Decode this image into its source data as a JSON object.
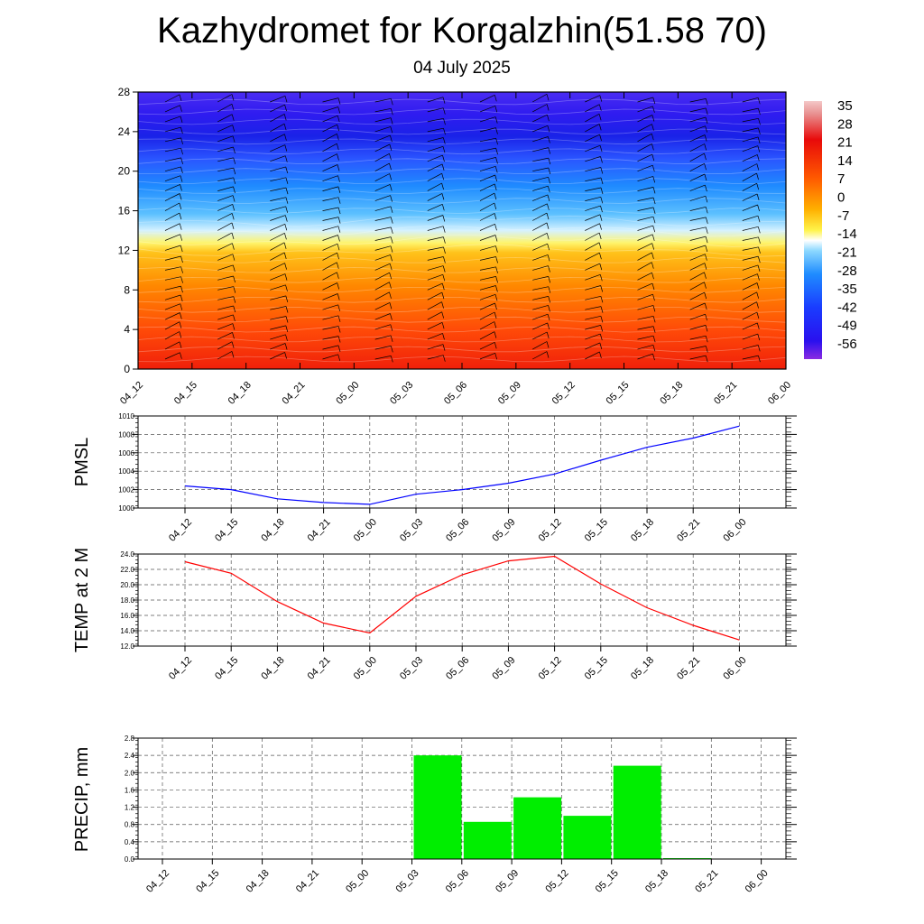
{
  "title": "Kazhydromet for Korgalzhin(51.58 70)",
  "subtitle": "04 July 2025",
  "time_labels": [
    "04_12",
    "04_15",
    "04_18",
    "04_21",
    "05_00",
    "05_03",
    "05_06",
    "05_09",
    "05_12",
    "05_15",
    "05_18",
    "05_21",
    "06_00"
  ],
  "chart_data": [
    {
      "type": "heatmap",
      "title": "",
      "xlabel": "",
      "ylabel": "",
      "x": [
        "04_12",
        "04_15",
        "04_18",
        "04_21",
        "05_00",
        "05_03",
        "05_06",
        "05_09",
        "05_12",
        "05_15",
        "05_18",
        "05_21",
        "06_00"
      ],
      "y_ticks": [
        0,
        4,
        8,
        12,
        16,
        20,
        24,
        28
      ],
      "ylim": [
        0,
        28
      ],
      "colorbar_labels": [
        "35",
        "28",
        "21",
        "14",
        "7",
        "0",
        "-7",
        "-14",
        "-21",
        "-28",
        "-35",
        "-42",
        "-49",
        "-56"
      ],
      "colorbar_range": [
        -63,
        42
      ],
      "vertical_profile": [
        {
          "level": 0,
          "value": 23
        },
        {
          "level": 4,
          "value": 17
        },
        {
          "level": 8,
          "value": 8
        },
        {
          "level": 12,
          "value": -4
        },
        {
          "level": 13,
          "value": -9
        },
        {
          "level": 15,
          "value": -22
        },
        {
          "level": 18,
          "value": -34
        },
        {
          "level": 21,
          "value": -47
        },
        {
          "level": 24,
          "value": -60
        },
        {
          "level": 26,
          "value": -56
        },
        {
          "level": 28,
          "value": -52
        }
      ],
      "overlay": "wind barbs"
    },
    {
      "type": "line",
      "ylabel": "PMSL",
      "xlabel": "",
      "ylim": [
        1000,
        1010
      ],
      "y_ticks": [
        1000,
        1002,
        1004,
        1006,
        1008,
        1010
      ],
      "grid": true,
      "categories": [
        "04_12",
        "04_15",
        "04_18",
        "04_21",
        "05_00",
        "05_03",
        "05_06",
        "05_09",
        "05_12",
        "05_15",
        "05_18",
        "05_21",
        "06_00"
      ],
      "series": [
        {
          "values": [
            1002.4,
            1002.0,
            1001.0,
            1000.6,
            1000.4,
            1001.5,
            1002.0,
            1002.7,
            1003.7,
            1005.2,
            1006.6,
            1007.6,
            1008.9
          ],
          "color": "#0000ff"
        }
      ]
    },
    {
      "type": "line",
      "ylabel": "TEMP at 2 M",
      "xlabel": "",
      "ylim": [
        12,
        24
      ],
      "y_ticks": [
        "12.0",
        "14.0",
        "16.0",
        "18.0",
        "20.0",
        "22.0",
        "24.0"
      ],
      "grid": true,
      "categories": [
        "04_12",
        "04_15",
        "04_18",
        "04_21",
        "05_00",
        "05_03",
        "05_06",
        "05_09",
        "05_12",
        "05_15",
        "05_18",
        "05_21",
        "06_00"
      ],
      "series": [
        {
          "values": [
            23.0,
            21.5,
            17.8,
            15.0,
            13.7,
            18.5,
            21.3,
            23.1,
            23.7,
            20.1,
            17.0,
            14.7,
            12.8
          ],
          "color": "#ff0000"
        }
      ]
    },
    {
      "type": "bar",
      "ylabel": "PRECIP, mm",
      "xlabel": "",
      "ylim": [
        0,
        2.8
      ],
      "y_ticks": [
        "0.0",
        "0.4",
        "0.8",
        "1.2",
        "1.6",
        "2.0",
        "2.4",
        "2.8"
      ],
      "grid": true,
      "categories": [
        "04_12",
        "04_15",
        "04_18",
        "04_21",
        "05_00",
        "05_03",
        "05_06",
        "05_09",
        "05_12",
        "05_15",
        "05_18",
        "05_21",
        "06_00"
      ],
      "values": [
        0,
        0,
        0,
        0,
        0,
        2.4,
        0.86,
        1.43,
        1.0,
        2.16,
        0.02,
        0,
        0
      ],
      "color": "#00ee00"
    }
  ]
}
